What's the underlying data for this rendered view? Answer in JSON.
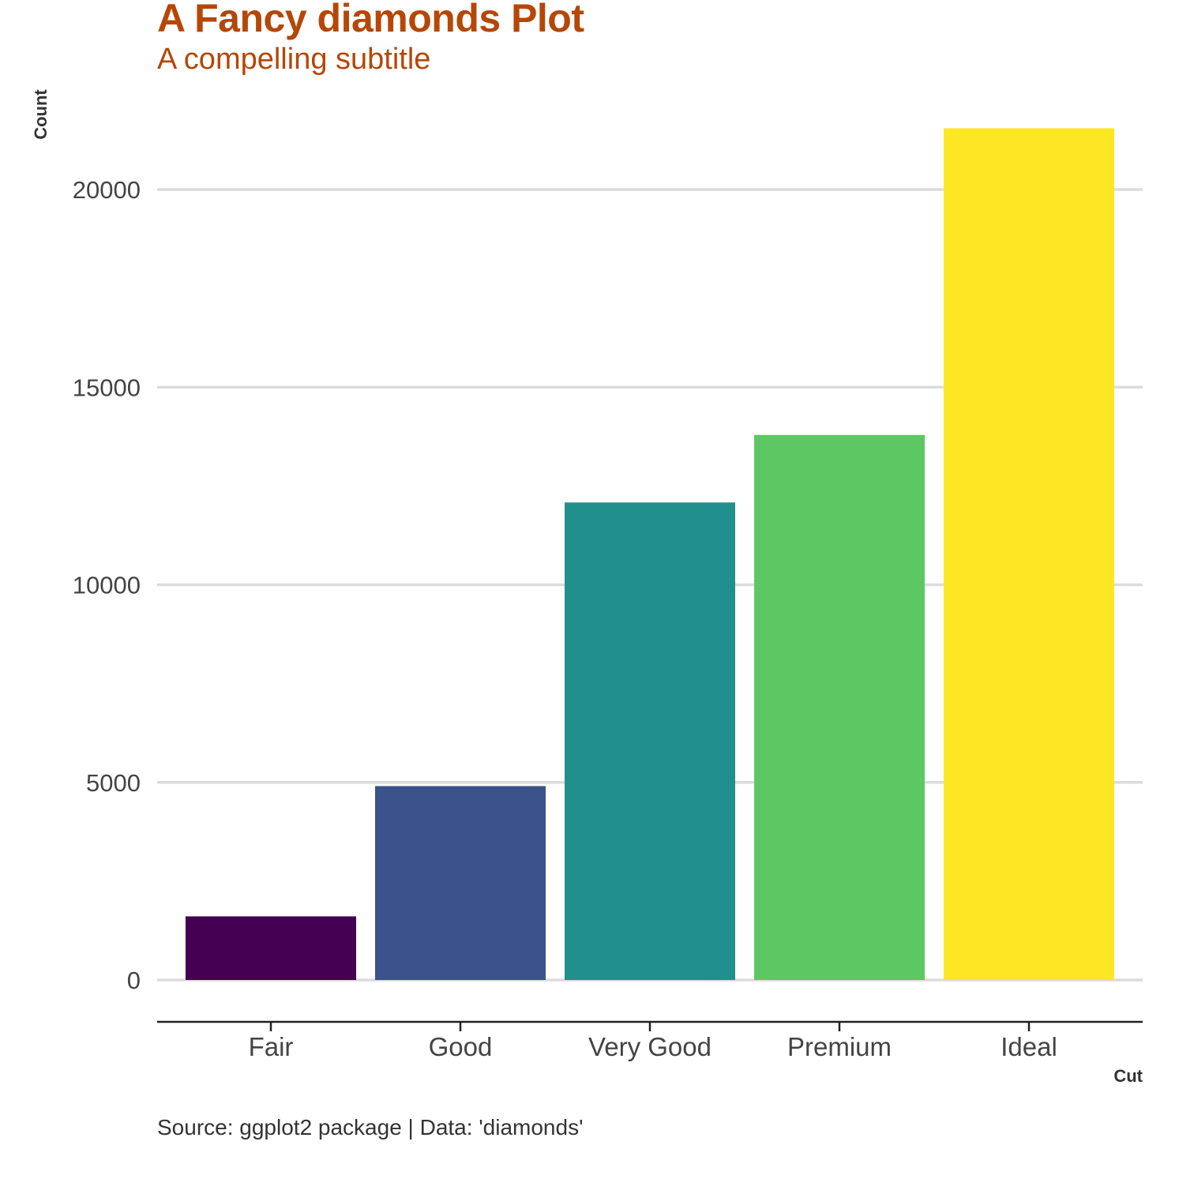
{
  "chart_data": {
    "type": "bar",
    "title": "A Fancy diamonds Plot",
    "subtitle": "A compelling subtitle",
    "caption": "Source: ggplot2 package | Data: 'diamonds'",
    "xlabel": "Cut",
    "ylabel": "Count",
    "categories": [
      "Fair",
      "Good",
      "Very Good",
      "Premium",
      "Ideal"
    ],
    "values": [
      1610,
      4906,
      12082,
      13791,
      21551
    ],
    "colors": [
      "#440154",
      "#3b528b",
      "#21908c",
      "#5dc863",
      "#fde725"
    ],
    "yticks": [
      0,
      5000,
      10000,
      15000,
      20000
    ],
    "ylim": [
      0,
      22629
    ],
    "grid": true,
    "legend": "none",
    "title_color": "#b54707"
  }
}
